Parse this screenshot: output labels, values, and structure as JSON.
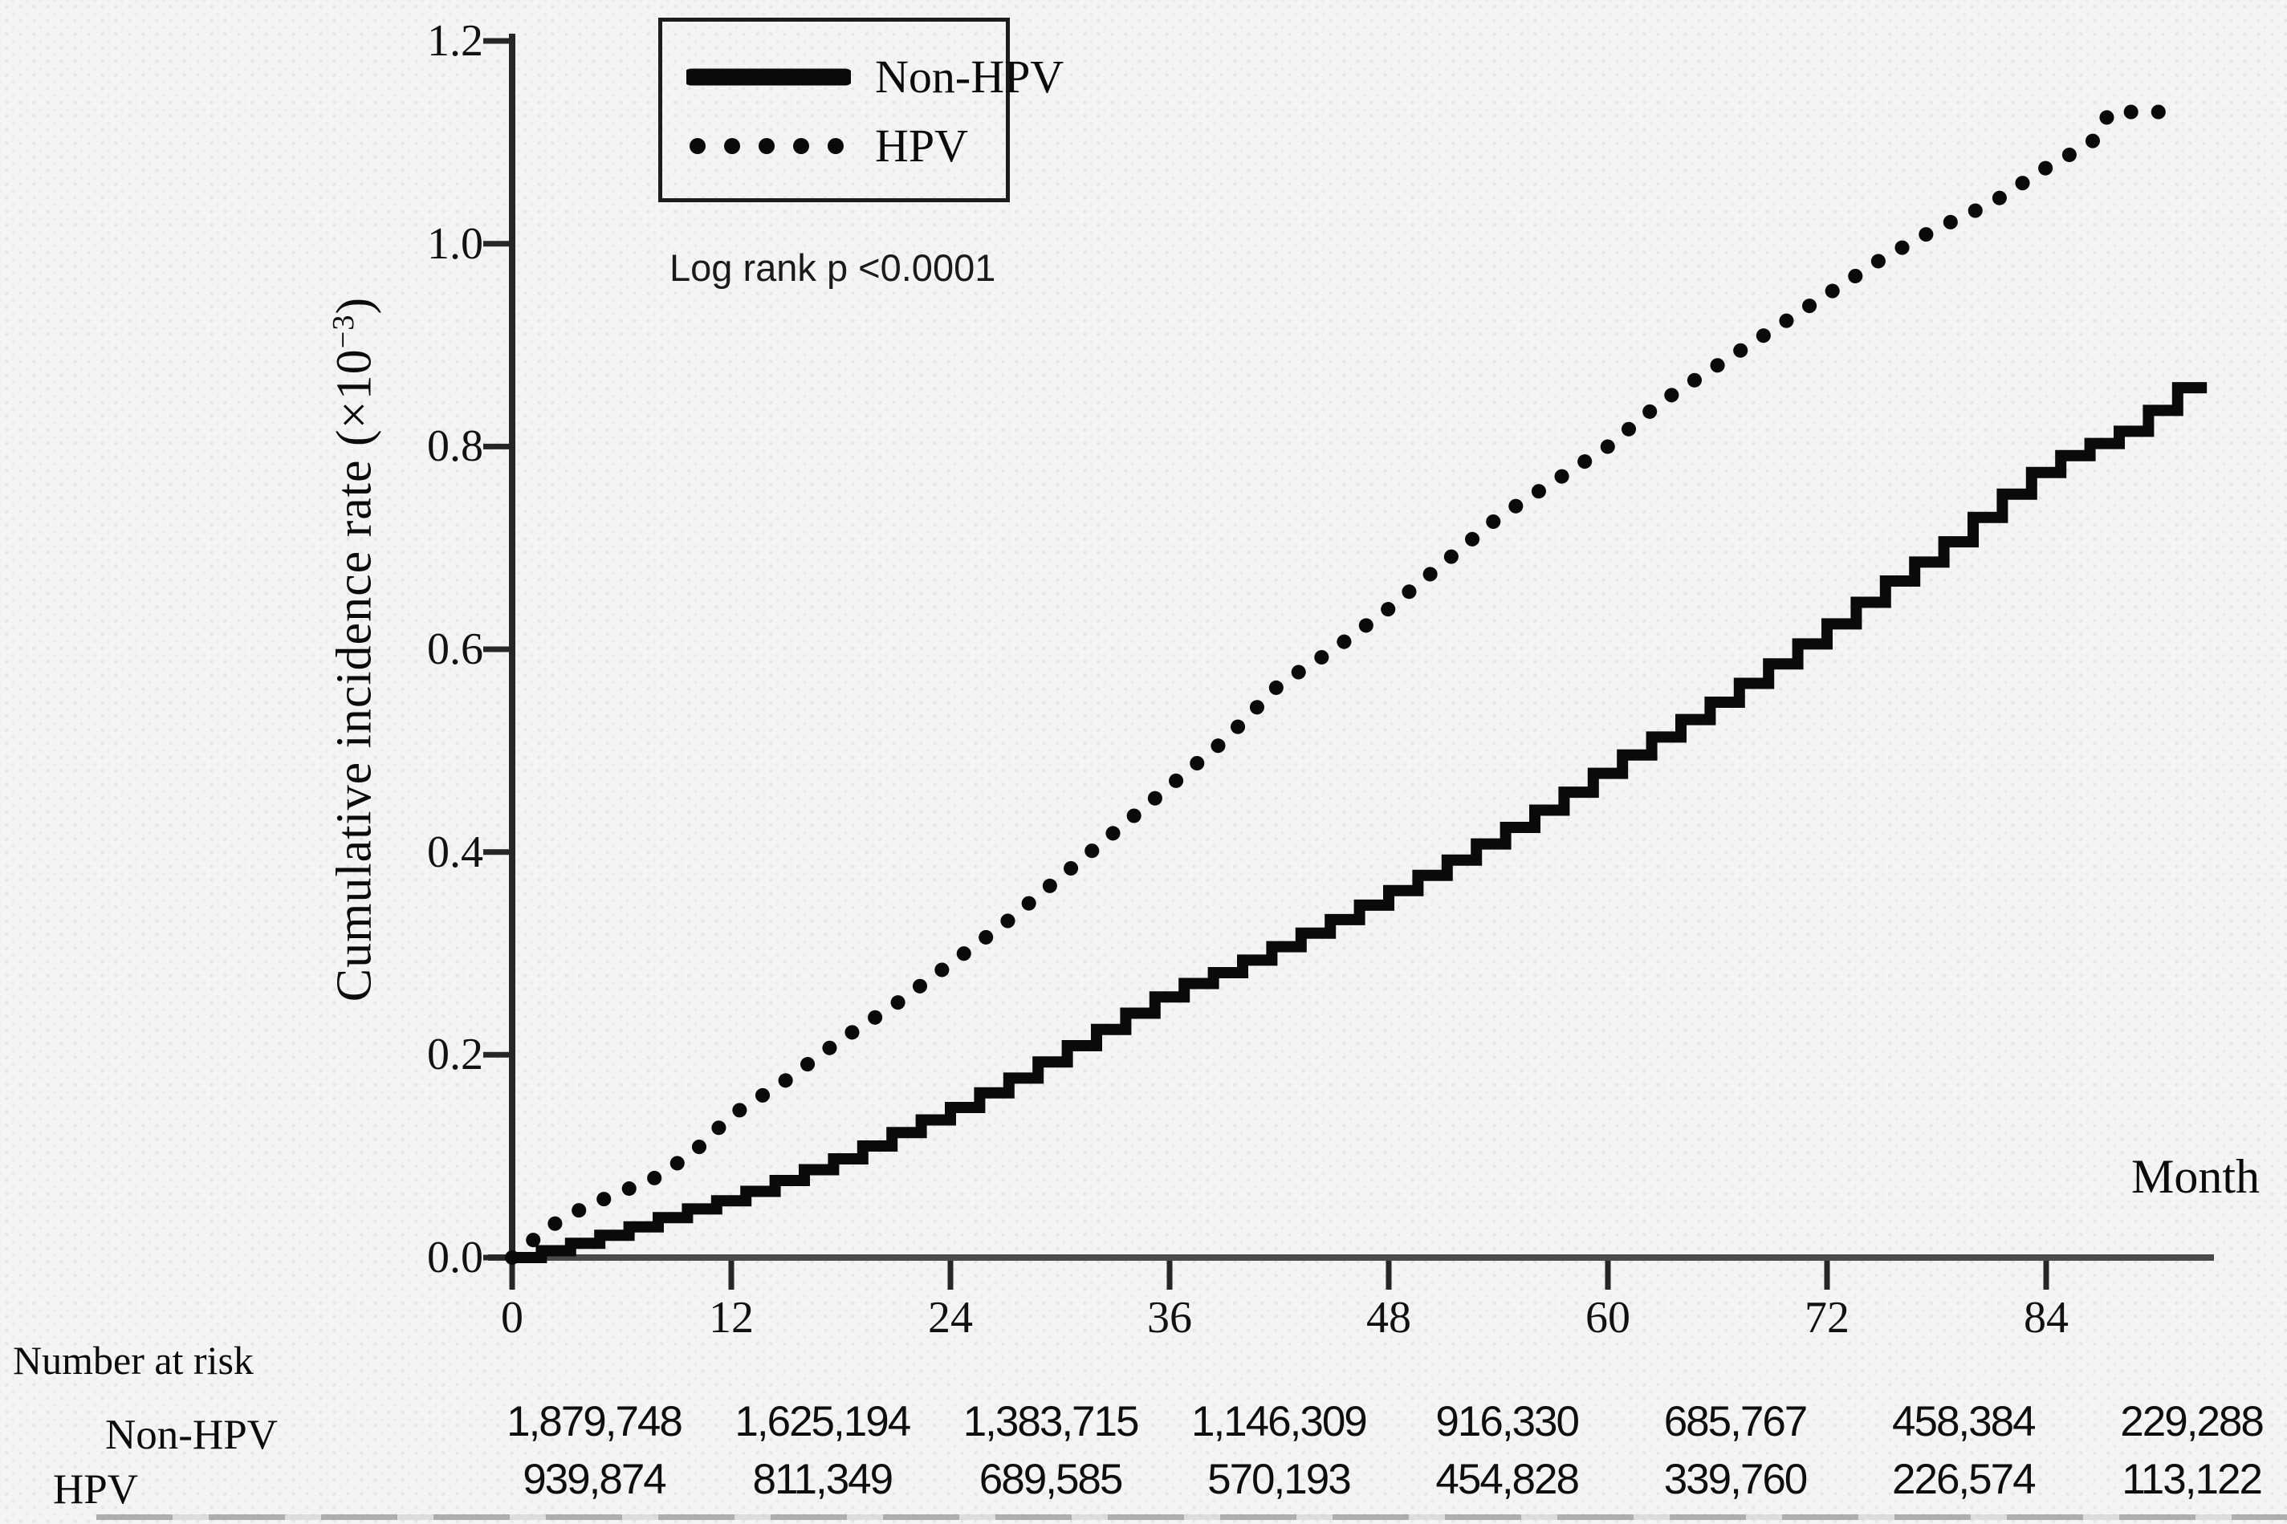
{
  "chart_data": {
    "type": "line",
    "title": "",
    "ylabel": "Cumulative incidence rate (×10−3)",
    "ylabel_prefix": "Cumulative incidence rate (×10",
    "ylabel_exponent": "−3",
    "ylabel_suffix": ")",
    "xlabel": "Month",
    "annotation": "Log rank p <0.0001",
    "legend_position": "top-left-inside",
    "grid": false,
    "xlim": [
      0,
      93
    ],
    "ylim": [
      0,
      1.2
    ],
    "x_ticks": [
      0,
      12,
      24,
      36,
      48,
      60,
      72,
      84
    ],
    "x_tick_labels": [
      "0",
      "12",
      "24",
      "36",
      "48",
      "60",
      "72",
      "84"
    ],
    "y_ticks": [
      0.0,
      0.2,
      0.4,
      0.6,
      0.8,
      1.0,
      1.2
    ],
    "y_tick_labels": [
      "0.0",
      "0.2",
      "0.4",
      "0.6",
      "0.8",
      "1.0",
      "1.2"
    ],
    "y_units": "×10−3",
    "series": [
      {
        "name": "Non-HPV",
        "style": "solid-step",
        "color": "#0a0a0a",
        "x": [
          0,
          1,
          3,
          6,
          9,
          12,
          15,
          18,
          21,
          24,
          27,
          30,
          33,
          36,
          39,
          42,
          45,
          48,
          51,
          54,
          57,
          60,
          63,
          66,
          69,
          72,
          75,
          78,
          81,
          84,
          86,
          88,
          89.5,
          90,
          93
        ],
        "y": [
          0,
          0.004,
          0.013,
          0.028,
          0.045,
          0.06,
          0.08,
          0.1,
          0.125,
          0.148,
          0.175,
          0.205,
          0.235,
          0.265,
          0.285,
          0.31,
          0.335,
          0.362,
          0.39,
          0.42,
          0.452,
          0.487,
          0.52,
          0.552,
          0.588,
          0.625,
          0.665,
          0.7,
          0.745,
          0.785,
          0.8,
          0.815,
          0.83,
          0.858,
          0.858
        ]
      },
      {
        "name": "HPV",
        "style": "dotted",
        "color": "#0a0a0a",
        "x": [
          0,
          2,
          4,
          6,
          8,
          10,
          12,
          15,
          18,
          21,
          24,
          27,
          30,
          33,
          36,
          39,
          42,
          45,
          48,
          51,
          54,
          57,
          60,
          63,
          66,
          69,
          72,
          75,
          78,
          81,
          84,
          86.5,
          87.5,
          91
        ],
        "y": [
          0,
          0.03,
          0.05,
          0.065,
          0.08,
          0.105,
          0.14,
          0.175,
          0.215,
          0.25,
          0.29,
          0.33,
          0.375,
          0.42,
          0.465,
          0.51,
          0.565,
          0.6,
          0.64,
          0.685,
          0.73,
          0.765,
          0.8,
          0.845,
          0.88,
          0.915,
          0.95,
          0.985,
          1.015,
          1.04,
          1.075,
          1.1,
          1.13,
          1.13
        ]
      }
    ]
  },
  "risk_table": {
    "title": "Number at risk",
    "months": [
      0,
      12,
      24,
      36,
      48,
      60,
      72,
      84
    ],
    "rows": [
      {
        "label": "Non-HPV",
        "values": [
          "1,879,748",
          "1,625,194",
          "1,383,715",
          "1,146,309",
          "916,330",
          "685,767",
          "458,384",
          "229,288"
        ]
      },
      {
        "label": "HPV",
        "values": [
          "939,874",
          "811,349",
          "689,585",
          "570,193",
          "454,828",
          "339,760",
          "226,574",
          "113,122"
        ]
      }
    ]
  }
}
